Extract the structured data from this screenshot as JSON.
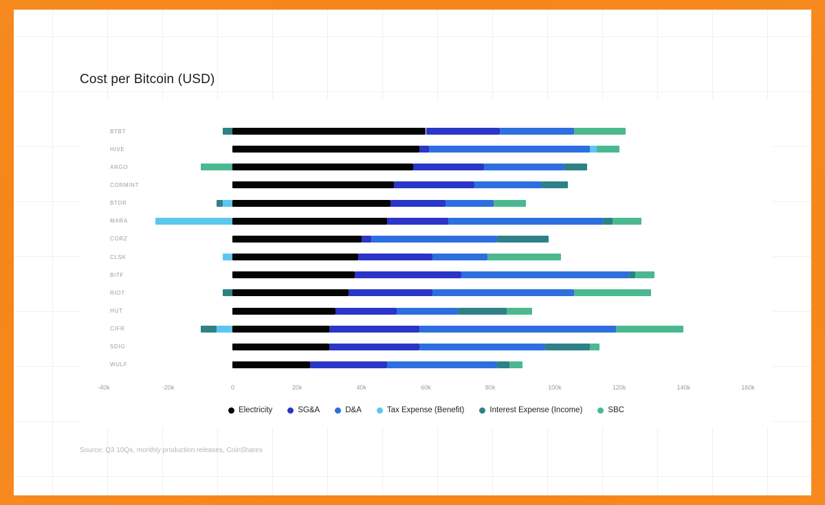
{
  "chart_data": {
    "type": "bar",
    "variant": "horizontal-stacked",
    "title": "Cost per Bitcoin (USD)",
    "unit": "USD",
    "xlim": [
      -40000,
      160000
    ],
    "grid": false,
    "legend_position": "bottom",
    "source": "Source: Q3 10Qs, monthly production releases, CoinShares",
    "x_ticks": [
      {
        "label": "-40k",
        "value": -40000
      },
      {
        "label": "-20k",
        "value": -20000
      },
      {
        "label": "0",
        "value": 0
      },
      {
        "label": "20k",
        "value": 20000
      },
      {
        "label": "40k",
        "value": 40000
      },
      {
        "label": "60k",
        "value": 60000
      },
      {
        "label": "80k",
        "value": 80000
      },
      {
        "label": "100k",
        "value": 100000
      },
      {
        "label": "120k",
        "value": 120000
      },
      {
        "label": "140k",
        "value": 140000
      },
      {
        "label": "160k",
        "value": 160000
      }
    ],
    "categories": [
      "BTBT",
      "HIVE",
      "ARGO",
      "CORMINT",
      "BTDR",
      "MARA",
      "CORZ",
      "CLSK",
      "BITF",
      "RIOT",
      "HUT",
      "CIFR",
      "SDIG",
      "WULF"
    ],
    "series": [
      {
        "name": "Electricity",
        "color": "#050505",
        "values": [
          60000,
          58000,
          56000,
          50000,
          49000,
          48000,
          40000,
          39000,
          38000,
          36000,
          32000,
          30000,
          30000,
          24000
        ]
      },
      {
        "name": "SG&A",
        "color": "#2b35c8",
        "values": [
          23000,
          3000,
          22000,
          25000,
          17000,
          19000,
          3000,
          23000,
          33000,
          26000,
          19000,
          28000,
          28000,
          24000
        ]
      },
      {
        "name": "D&A",
        "color": "#2e6fe0",
        "values": [
          23000,
          50000,
          25000,
          21000,
          15000,
          48000,
          39000,
          17000,
          52000,
          44000,
          19000,
          61000,
          39000,
          34000
        ]
      },
      {
        "name": "Tax Expense (Benefit)",
        "color": "#5cc6ee",
        "values": [
          0,
          2000,
          0,
          0,
          -3000,
          -24000,
          0,
          -3000,
          0,
          0,
          0,
          -5000,
          0,
          0
        ]
      },
      {
        "name": "Interest Expense (Income)",
        "color": "#2e8187",
        "values": [
          -3000,
          0,
          7000,
          8000,
          -2000,
          3000,
          16000,
          0,
          2000,
          -3000,
          15000,
          -5000,
          14000,
          4000
        ]
      },
      {
        "name": "SBC",
        "color": "#4cb890",
        "values": [
          16000,
          7000,
          -10000,
          0,
          10000,
          9000,
          0,
          23000,
          6000,
          24000,
          8000,
          21000,
          3000,
          4000
        ]
      }
    ]
  }
}
